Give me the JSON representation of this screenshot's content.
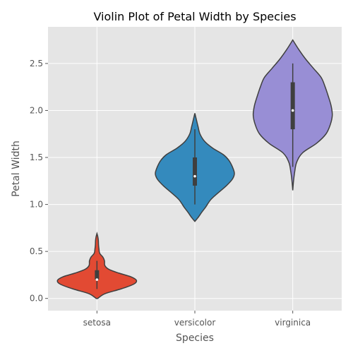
{
  "chart_data": {
    "type": "violin",
    "title": "Violin Plot of Petal Width by Species",
    "xlabel": "Species",
    "ylabel": "Petal Width",
    "categories": [
      "setosa",
      "versicolor",
      "virginica"
    ],
    "ylim": [
      -0.13,
      2.89
    ],
    "yticks": [
      "0.0",
      "0.5",
      "1.0",
      "1.5",
      "2.0",
      "2.5"
    ],
    "grid": true,
    "colors": {
      "background": "#E5E5E5",
      "grid": "#FFFFFF",
      "outline": "#3F3F3F",
      "median": "#FFFFFF"
    },
    "series": [
      {
        "category": "setosa",
        "color": "#E24A33",
        "min": 0.1,
        "q1": 0.2,
        "median": 0.2,
        "q3": 0.3,
        "max": 0.4,
        "range": [
          0.0,
          0.69
        ],
        "density": [
          [
            0.0,
            0.02
          ],
          [
            0.05,
            0.2
          ],
          [
            0.1,
            0.6
          ],
          [
            0.15,
            0.92
          ],
          [
            0.19,
            1.0
          ],
          [
            0.23,
            0.86
          ],
          [
            0.27,
            0.55
          ],
          [
            0.31,
            0.3
          ],
          [
            0.35,
            0.2
          ],
          [
            0.4,
            0.19
          ],
          [
            0.44,
            0.15
          ],
          [
            0.48,
            0.07
          ],
          [
            0.53,
            0.05
          ],
          [
            0.57,
            0.04
          ],
          [
            0.62,
            0.035
          ],
          [
            0.66,
            0.02
          ],
          [
            0.69,
            0.0
          ]
        ]
      },
      {
        "category": "versicolor",
        "color": "#348ABD",
        "min": 1.0,
        "q1": 1.2,
        "median": 1.3,
        "q3": 1.5,
        "max": 1.8,
        "range": [
          0.82,
          1.97
        ],
        "density": [
          [
            0.82,
            0.0
          ],
          [
            0.86,
            0.08
          ],
          [
            0.92,
            0.18
          ],
          [
            0.97,
            0.27
          ],
          [
            1.05,
            0.4
          ],
          [
            1.12,
            0.58
          ],
          [
            1.2,
            0.8
          ],
          [
            1.27,
            0.95
          ],
          [
            1.33,
            1.0
          ],
          [
            1.4,
            0.95
          ],
          [
            1.47,
            0.86
          ],
          [
            1.53,
            0.72
          ],
          [
            1.6,
            0.45
          ],
          [
            1.67,
            0.25
          ],
          [
            1.75,
            0.13
          ],
          [
            1.83,
            0.08
          ],
          [
            1.9,
            0.04
          ],
          [
            1.97,
            0.0
          ]
        ]
      },
      {
        "category": "virginica",
        "color": "#988ED5",
        "min": 1.4,
        "q1": 1.8,
        "median": 2.0,
        "q3": 2.3,
        "max": 2.5,
        "range": [
          1.15,
          2.75
        ],
        "density": [
          [
            1.15,
            0.0
          ],
          [
            1.25,
            0.02
          ],
          [
            1.35,
            0.05
          ],
          [
            1.45,
            0.1
          ],
          [
            1.55,
            0.25
          ],
          [
            1.65,
            0.6
          ],
          [
            1.75,
            0.84
          ],
          [
            1.85,
            0.95
          ],
          [
            1.95,
            1.0
          ],
          [
            2.05,
            0.97
          ],
          [
            2.15,
            0.9
          ],
          [
            2.25,
            0.82
          ],
          [
            2.35,
            0.72
          ],
          [
            2.45,
            0.52
          ],
          [
            2.55,
            0.32
          ],
          [
            2.65,
            0.15
          ],
          [
            2.75,
            0.0
          ]
        ]
      }
    ]
  }
}
